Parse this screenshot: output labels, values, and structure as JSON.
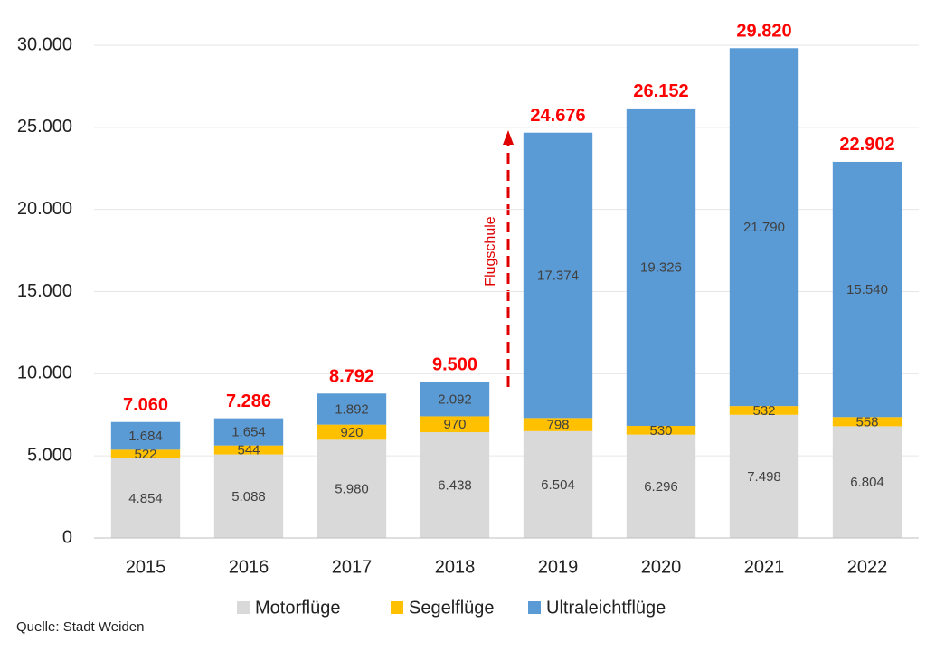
{
  "chart_data": {
    "type": "stacked-bar",
    "categories": [
      "2015",
      "2016",
      "2017",
      "2018",
      "2019",
      "2020",
      "2021",
      "2022"
    ],
    "series": [
      {
        "name": "Motorflüge",
        "color": "#d9d9d9",
        "values": [
          4854,
          5088,
          5980,
          6438,
          6504,
          6296,
          7498,
          6804
        ],
        "value_labels": [
          "4.854",
          "5.088",
          "5.980",
          "6.438",
          "6.504",
          "6.296",
          "7.498",
          "6.804"
        ]
      },
      {
        "name": "Segelflüge",
        "color": "#ffc000",
        "values": [
          522,
          544,
          920,
          970,
          798,
          530,
          532,
          558
        ],
        "value_labels": [
          "522",
          "544",
          "920",
          "970",
          "798",
          "530",
          "532",
          "558"
        ]
      },
      {
        "name": "Ultraleichtflüge",
        "color": "#5b9bd5",
        "values": [
          1684,
          1654,
          1892,
          2092,
          17374,
          19326,
          21790,
          15540
        ],
        "value_labels": [
          "1.684",
          "1.654",
          "1.892",
          "2.092",
          "17.374",
          "19.326",
          "21.790",
          "15.540"
        ]
      }
    ],
    "totals": {
      "color": "#ff0000",
      "values": [
        7060,
        7286,
        8792,
        9500,
        24676,
        26152,
        29820,
        22902
      ],
      "value_labels": [
        "7.060",
        "7.286",
        "8.792",
        "9.500",
        "24.676",
        "26.152",
        "29.820",
        "22.902"
      ]
    },
    "ylim": [
      0,
      30000
    ],
    "yticks": [
      0,
      {
        "value": 5000,
        "label": "5.000"
      },
      {
        "value": 10000,
        "label": "10.000"
      },
      {
        "value": 15000,
        "label": "15.000"
      },
      {
        "value": 20000,
        "label": "20.000"
      },
      {
        "value": 25000,
        "label": "25.000"
      },
      {
        "value": 30000,
        "label": "30.000"
      }
    ],
    "grid": true,
    "legend": "bottom",
    "annotation": "Flugschule",
    "source": "Quelle: Stadt Weiden"
  }
}
